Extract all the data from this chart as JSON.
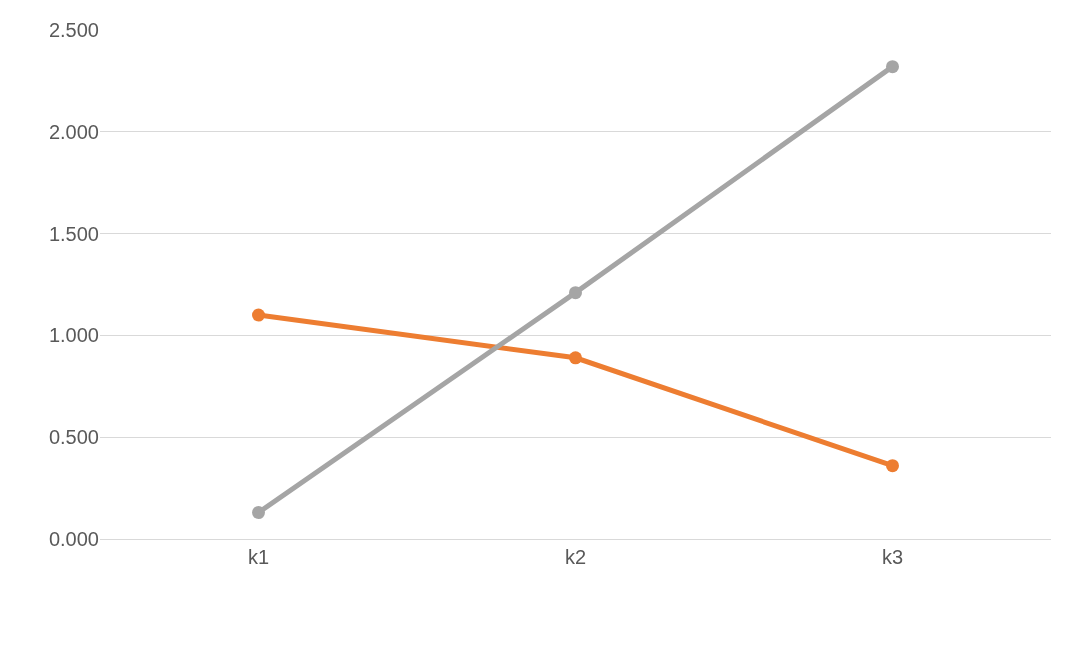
{
  "chart_data": {
    "type": "line",
    "categories": [
      "k1",
      "k2",
      "k3"
    ],
    "series": [
      {
        "color": "#ed7d31",
        "values": [
          1.1,
          0.89,
          0.36
        ]
      },
      {
        "color": "#a5a5a5",
        "values": [
          0.13,
          1.21,
          2.32
        ]
      }
    ],
    "ylim": [
      0,
      2.5
    ],
    "yticks": [
      {
        "value": 0,
        "label": "0.000"
      },
      {
        "value": 0.5,
        "label": "0.500"
      },
      {
        "value": 1,
        "label": "1.000"
      },
      {
        "value": 1.5,
        "label": "1.500"
      },
      {
        "value": 2,
        "label": "2.000"
      },
      {
        "value": 2.5,
        "label": "2.500"
      }
    ],
    "grid": "y",
    "marker": "circle",
    "line_style": "solid"
  }
}
